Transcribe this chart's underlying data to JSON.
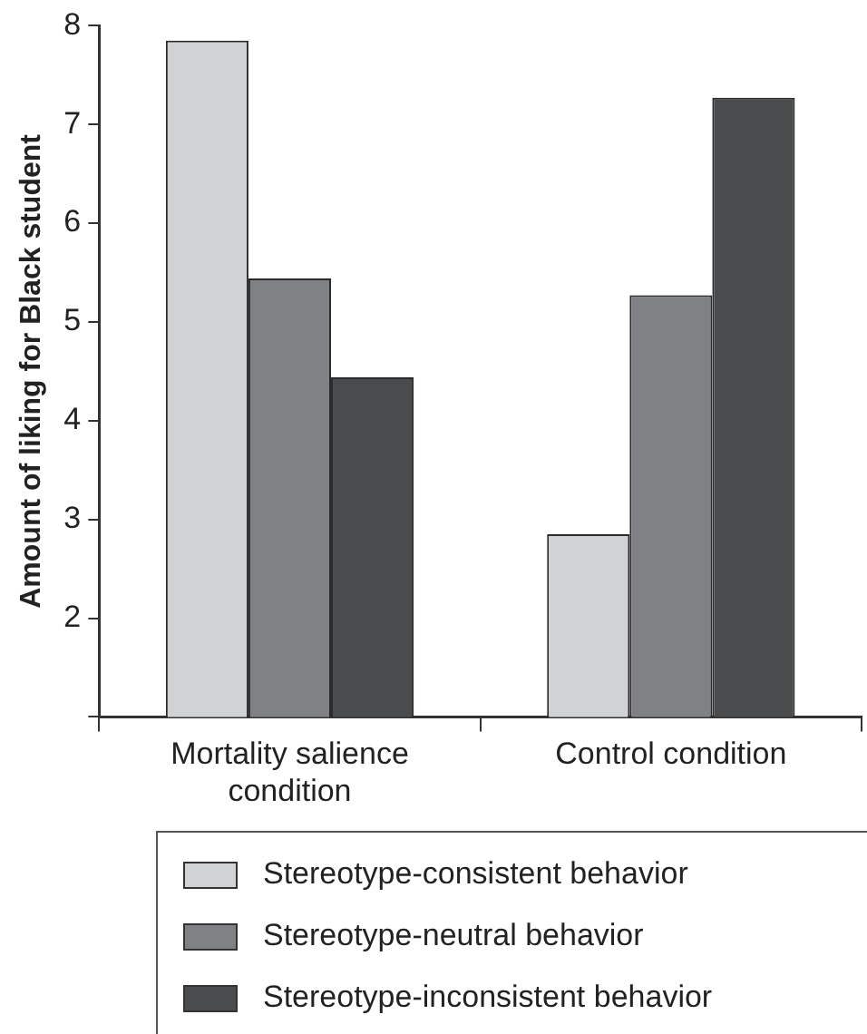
{
  "chart_data": {
    "type": "bar",
    "ylabel": "Amount of liking for Black student",
    "categories": [
      "Mortality salience condition",
      "Control condition"
    ],
    "series": [
      {
        "name": "Stereotype-consistent behavior",
        "color": "#d1d2d4",
        "values": [
          7.85,
          2.85
        ]
      },
      {
        "name": "Stereotype-neutral behavior",
        "color": "#808184",
        "values": [
          5.44,
          5.27
        ]
      },
      {
        "name": "Stereotype-inconsistent behavior",
        "color": "#4a4b4d",
        "values": [
          4.44,
          7.27
        ]
      }
    ],
    "ylim": [
      1,
      8
    ],
    "yticks": [
      {
        "value": 1,
        "label": null
      },
      2,
      3,
      4,
      5,
      6,
      7,
      8
    ],
    "grid": false,
    "legend": "bottom"
  }
}
